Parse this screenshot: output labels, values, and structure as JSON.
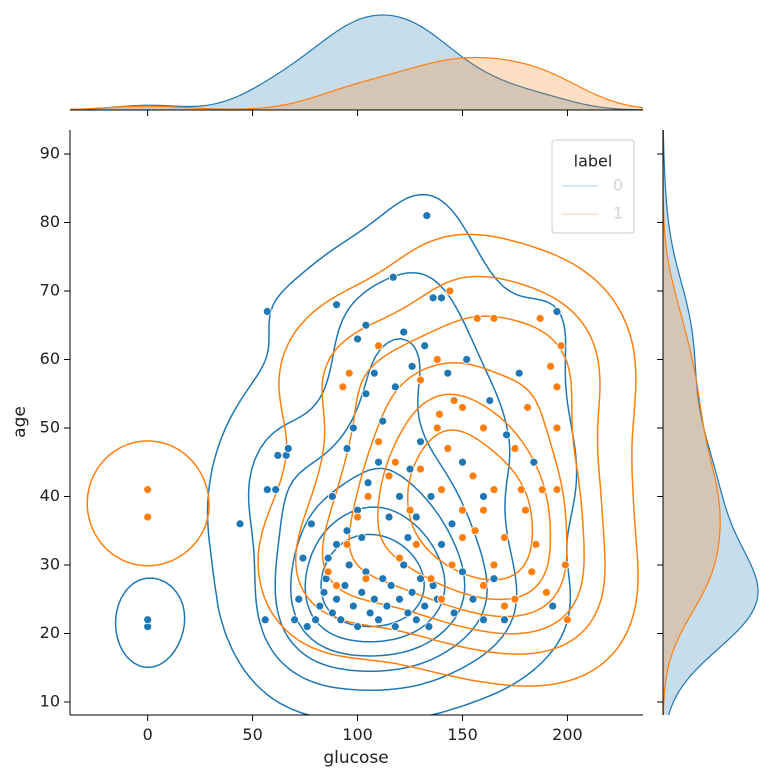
{
  "chart_data": {
    "type": "scatter",
    "x_label": "glucose",
    "y_label": "age",
    "xlim": [
      -37,
      236
    ],
    "ylim": [
      8.1,
      93.5
    ],
    "xticks": [
      0,
      50,
      100,
      150,
      200
    ],
    "yticks": [
      10,
      20,
      30,
      40,
      50,
      60,
      70,
      80,
      90
    ],
    "legend_title": "label",
    "legend_position": "upper right",
    "series": [
      {
        "name": "0",
        "color": "#1f77b4",
        "x": [
          0,
          0,
          44,
          57,
          56,
          57,
          61,
          62,
          66,
          67,
          90,
          100,
          104,
          117,
          122,
          126,
          133,
          136,
          132,
          140,
          143,
          152,
          163,
          177,
          195,
          171,
          184,
          193,
          188,
          80,
          82,
          84,
          85,
          88,
          90,
          92,
          94,
          96,
          98,
          100,
          102,
          104,
          106,
          108,
          110,
          112,
          114,
          116,
          118,
          120,
          122,
          124,
          126,
          128,
          130,
          132,
          134,
          136,
          138,
          90,
          95,
          100,
          105,
          110,
          115,
          120,
          125,
          130,
          112,
          118,
          108,
          95,
          88,
          78,
          74,
          72,
          70,
          76,
          86,
          102,
          124,
          140,
          146,
          150,
          155,
          160,
          145,
          150,
          160,
          165,
          170,
          98,
          104,
          135,
          128
        ],
        "y": [
          21,
          22,
          36,
          67,
          22,
          41,
          41,
          46,
          46,
          47,
          68,
          63,
          65,
          72,
          64,
          59,
          81,
          69,
          62,
          69,
          58,
          60,
          54,
          58,
          67,
          49,
          45,
          24,
          41,
          22,
          24,
          26,
          28,
          23,
          25,
          22,
          27,
          30,
          24,
          21,
          26,
          29,
          23,
          25,
          22,
          28,
          24,
          27,
          21,
          25,
          30,
          23,
          26,
          22,
          28,
          24,
          21,
          27,
          25,
          33,
          35,
          38,
          42,
          45,
          37,
          40,
          44,
          48,
          51,
          56,
          58,
          47,
          40,
          36,
          31,
          25,
          22,
          21,
          31,
          34,
          34,
          33,
          23,
          29,
          25,
          22,
          36,
          45,
          40,
          28,
          22,
          50,
          55,
          40,
          37
        ]
      },
      {
        "name": "1",
        "color": "#ff7f0e",
        "x": [
          0,
          0,
          93,
          96,
          110,
          130,
          138,
          144,
          157,
          165,
          187,
          192,
          197,
          195,
          195,
          181,
          175,
          160,
          150,
          146,
          139,
          138,
          143,
          155,
          165,
          178,
          188,
          195,
          199,
          200,
          190,
          183,
          175,
          170,
          165,
          160,
          156,
          150,
          145,
          140,
          135,
          128,
          125,
          120,
          115,
          110,
          105,
          100,
          95,
          90,
          86,
          104,
          118,
          130,
          140,
          150,
          160,
          170,
          180,
          185
        ],
        "y": [
          41,
          37,
          56,
          58,
          62,
          57,
          60,
          70,
          66,
          66,
          66,
          59,
          62,
          56,
          50,
          53,
          47,
          50,
          53,
          54,
          52,
          50,
          47,
          43,
          41,
          41,
          41,
          41,
          30,
          22,
          26,
          29,
          25,
          24,
          30,
          27,
          35,
          34,
          30,
          25,
          28,
          33,
          38,
          31,
          43,
          48,
          40,
          37,
          33,
          27,
          29,
          28,
          45,
          44,
          41,
          38,
          38,
          34,
          38,
          33
        ]
      }
    ]
  }
}
